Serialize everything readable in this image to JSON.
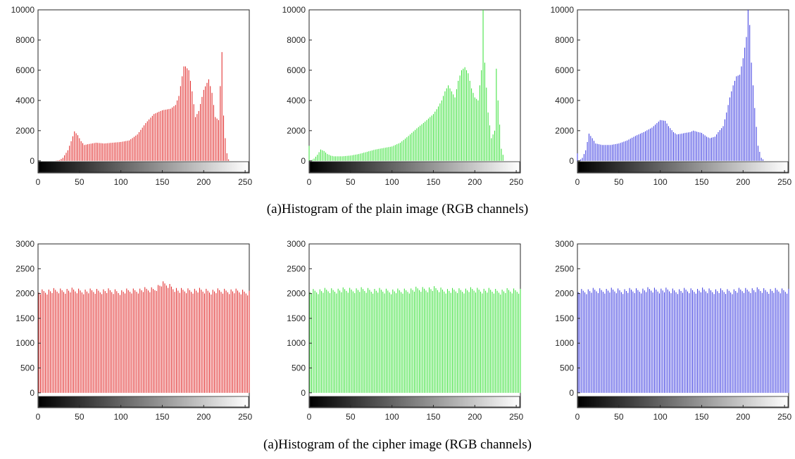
{
  "figure": {
    "caption_top": "(a)Histogram of the plain image (RGB channels)",
    "caption_bottom": "(a)Histogram of the cipher image (RGB channels)"
  },
  "chart_data": [
    {
      "type": "bar",
      "row": 1,
      "channel": "red",
      "color": "#e02020",
      "title": "",
      "xlabel": "",
      "ylabel": "",
      "xlim": [
        0,
        255
      ],
      "ylim": [
        -800,
        10000
      ],
      "xticks": [
        0,
        50,
        100,
        150,
        200,
        250
      ],
      "yticks": [
        0,
        2000,
        4000,
        6000,
        8000,
        10000
      ],
      "bins": {
        "start": 0,
        "end": 255,
        "step": 2
      },
      "x": [
        0,
        20,
        26,
        30,
        36,
        40,
        44,
        48,
        52,
        56,
        60,
        70,
        80,
        90,
        100,
        110,
        120,
        130,
        140,
        150,
        160,
        166,
        170,
        174,
        176,
        178,
        182,
        186,
        190,
        194,
        200,
        206,
        210,
        214,
        218,
        222,
        224,
        226,
        228,
        230,
        232,
        255
      ],
      "values": [
        0,
        0,
        50,
        200,
        700,
        1300,
        1950,
        1700,
        1300,
        1050,
        1100,
        1200,
        1150,
        1200,
        1250,
        1350,
        1750,
        2500,
        3100,
        3350,
        3450,
        3700,
        4300,
        5600,
        6250,
        6250,
        6000,
        4600,
        2900,
        3300,
        4700,
        5400,
        4500,
        2900,
        2700,
        7200,
        3000,
        1500,
        500,
        100,
        0,
        0
      ]
    },
    {
      "type": "bar",
      "row": 1,
      "channel": "green",
      "color": "#33e033",
      "title": "",
      "xlabel": "",
      "ylabel": "",
      "xlim": [
        0,
        255
      ],
      "ylim": [
        -800,
        10000
      ],
      "xticks": [
        0,
        50,
        100,
        150,
        200,
        250
      ],
      "yticks": [
        0,
        2000,
        4000,
        6000,
        8000,
        10000
      ],
      "bins": {
        "start": 0,
        "end": 255,
        "step": 2
      },
      "x": [
        0,
        2,
        6,
        10,
        14,
        18,
        22,
        26,
        30,
        40,
        50,
        60,
        70,
        80,
        90,
        100,
        110,
        120,
        130,
        140,
        150,
        155,
        160,
        164,
        168,
        172,
        176,
        180,
        184,
        188,
        192,
        196,
        200,
        204,
        208,
        210,
        212,
        216,
        220,
        224,
        226,
        228,
        232,
        236,
        255
      ],
      "values": [
        1000,
        0,
        150,
        400,
        750,
        650,
        450,
        350,
        300,
        300,
        350,
        450,
        600,
        750,
        850,
        950,
        1200,
        1650,
        2150,
        2600,
        3100,
        3500,
        4000,
        4600,
        5000,
        4600,
        4200,
        5300,
        6000,
        6200,
        5800,
        4800,
        4200,
        4000,
        6000,
        10000,
        6500,
        3200,
        1500,
        2000,
        6100,
        4000,
        800,
        0,
        0
      ]
    },
    {
      "type": "bar",
      "row": 1,
      "channel": "blue",
      "color": "#3535e0",
      "title": "",
      "xlabel": "",
      "ylabel": "",
      "xlim": [
        0,
        255
      ],
      "ylim": [
        -800,
        10000
      ],
      "xticks": [
        0,
        50,
        100,
        150,
        200,
        250
      ],
      "yticks": [
        0,
        2000,
        4000,
        6000,
        8000,
        10000
      ],
      "bins": {
        "start": 0,
        "end": 255,
        "step": 2
      },
      "x": [
        0,
        2,
        6,
        10,
        14,
        18,
        22,
        26,
        30,
        40,
        50,
        60,
        70,
        80,
        90,
        96,
        100,
        106,
        110,
        116,
        120,
        126,
        130,
        136,
        140,
        146,
        150,
        156,
        160,
        166,
        170,
        176,
        180,
        184,
        188,
        192,
        196,
        200,
        204,
        206,
        208,
        210,
        214,
        218,
        222,
        226,
        255
      ],
      "values": [
        500,
        0,
        200,
        700,
        1800,
        1500,
        1150,
        1100,
        1050,
        1050,
        1150,
        1350,
        1650,
        1900,
        2200,
        2500,
        2700,
        2650,
        2300,
        1900,
        1750,
        1800,
        1850,
        1900,
        2000,
        1900,
        1850,
        1600,
        1500,
        1600,
        1900,
        2300,
        3200,
        4200,
        5000,
        5600,
        5700,
        6800,
        8200,
        10000,
        9000,
        6500,
        3500,
        1000,
        200,
        0,
        0
      ]
    },
    {
      "type": "bar",
      "row": 2,
      "channel": "red",
      "color": "#e02020",
      "title": "",
      "xlabel": "",
      "ylabel": "",
      "xlim": [
        0,
        255
      ],
      "ylim": [
        -300,
        3000
      ],
      "xticks": [
        0,
        50,
        100,
        150,
        200,
        250
      ],
      "yticks": [
        0,
        500,
        1000,
        1500,
        2000,
        2500,
        3000
      ],
      "bins": {
        "start": 1,
        "end": 255,
        "step": 2
      },
      "x": [
        0,
        20,
        40,
        60,
        80,
        100,
        120,
        140,
        150,
        156,
        170,
        190,
        210,
        230,
        255
      ],
      "values": [
        2030,
        2050,
        2060,
        2040,
        2050,
        2030,
        2060,
        2080,
        2190,
        2170,
        2050,
        2060,
        2040,
        2050,
        2020
      ]
    },
    {
      "type": "bar",
      "row": 2,
      "channel": "green",
      "color": "#33e033",
      "title": "",
      "xlabel": "",
      "ylabel": "",
      "xlim": [
        0,
        255
      ],
      "ylim": [
        -300,
        3000
      ],
      "xticks": [
        0,
        50,
        100,
        150,
        200,
        250
      ],
      "yticks": [
        0,
        500,
        1000,
        1500,
        2000,
        2500,
        3000
      ],
      "bins": {
        "start": 1,
        "end": 255,
        "step": 2
      },
      "x": [
        0,
        30,
        60,
        90,
        110,
        130,
        150,
        170,
        200,
        230,
        255
      ],
      "values": [
        2040,
        2060,
        2070,
        2050,
        2040,
        2080,
        2090,
        2050,
        2070,
        2040,
        2060
      ]
    },
    {
      "type": "bar",
      "row": 2,
      "channel": "blue",
      "color": "#3535e0",
      "title": "",
      "xlabel": "",
      "ylabel": "",
      "xlim": [
        0,
        255
      ],
      "ylim": [
        -300,
        3000
      ],
      "xticks": [
        0,
        50,
        100,
        150,
        200,
        250
      ],
      "yticks": [
        0,
        500,
        1000,
        1500,
        2000,
        2500,
        3000
      ],
      "bins": {
        "start": 1,
        "end": 255,
        "step": 2
      },
      "x": [
        0,
        30,
        60,
        90,
        120,
        150,
        180,
        210,
        240,
        255
      ],
      "values": [
        2040,
        2060,
        2050,
        2070,
        2050,
        2060,
        2040,
        2070,
        2050,
        2060
      ]
    }
  ]
}
